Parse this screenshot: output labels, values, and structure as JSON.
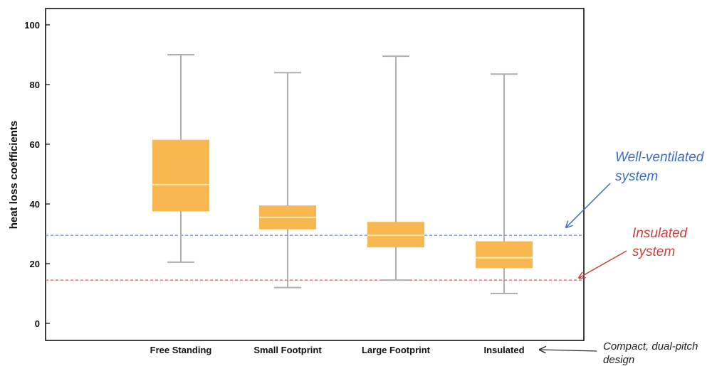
{
  "chart_data": {
    "type": "box",
    "ylabel": "heat loss coefficients",
    "ylim": [
      -5,
      105
    ],
    "yticks": [
      0,
      20,
      40,
      60,
      80,
      100
    ],
    "grid": false,
    "categories": [
      "Free Standing",
      "Small Footprint",
      "Large Footprint",
      "Insulated"
    ],
    "boxes": [
      {
        "whisker_low": 20.5,
        "q1": 37.5,
        "median": 46.5,
        "q3": 61.5,
        "whisker_high": 90
      },
      {
        "whisker_low": 12,
        "q1": 31.5,
        "median": 35.5,
        "q3": 39.5,
        "whisker_high": 84
      },
      {
        "whisker_low": 14.5,
        "q1": 25.5,
        "median": 29.5,
        "q3": 34,
        "whisker_high": 89.5
      },
      {
        "whisker_low": 10,
        "q1": 18.5,
        "median": 22,
        "q3": 27.5,
        "whisker_high": 83.5
      }
    ],
    "reference_lines": [
      {
        "value": 29.5,
        "color": "#5b86d6"
      },
      {
        "value": 14.5,
        "color": "#d25b5b"
      }
    ],
    "annotations": [
      {
        "lines": [
          "Well-ventilated",
          "system"
        ],
        "color": "#3b6fc4"
      },
      {
        "lines": [
          "Insulated",
          "system"
        ],
        "color": "#c9413f"
      },
      {
        "lines": [
          "Compact, dual-pitch",
          "design"
        ],
        "color": "#222222"
      }
    ],
    "box_color": "#f9b74f",
    "median_color": "#fde9b8",
    "whisker_color": "#b0b0b0"
  }
}
